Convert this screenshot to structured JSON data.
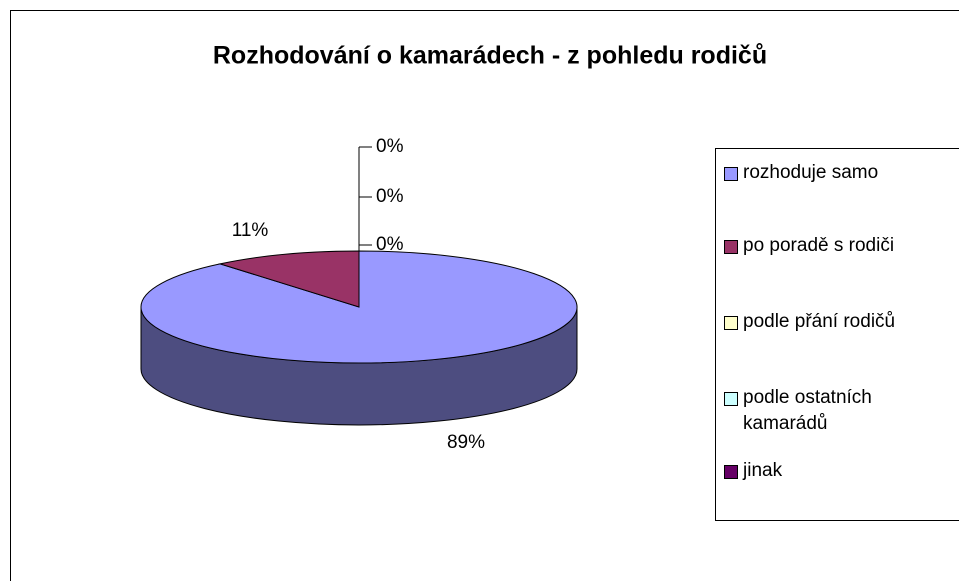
{
  "chart_data": {
    "type": "pie",
    "title": "Rozhodování o kamarádech - z pohledu rodičů",
    "categories": [
      "rozhoduje samo",
      "po poradě s rodiči",
      "podle přání rodičů",
      "podle ostatních kamarádů",
      "jinak"
    ],
    "values": [
      89,
      11,
      0,
      0,
      0
    ],
    "value_labels": [
      "89%",
      "11%",
      "0%",
      "0%",
      "0%"
    ],
    "colors": [
      "#9999ff",
      "#993366",
      "#ffffcc",
      "#ccffff",
      "#660066"
    ],
    "legend": "right"
  }
}
